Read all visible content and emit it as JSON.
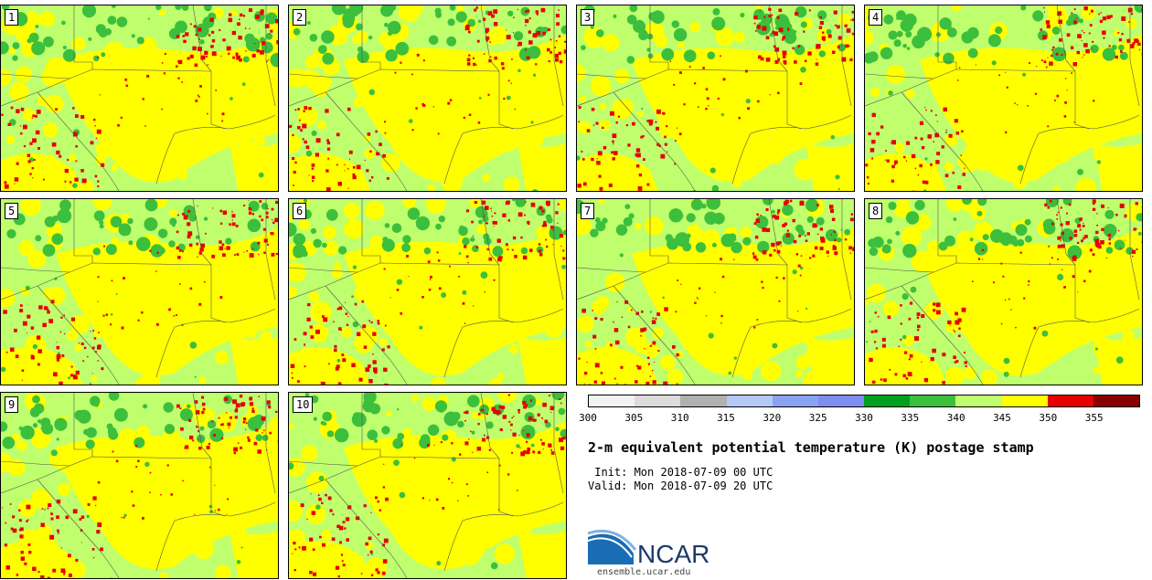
{
  "panels": [
    {
      "label": "1"
    },
    {
      "label": "2"
    },
    {
      "label": "3"
    },
    {
      "label": "4"
    },
    {
      "label": "5"
    },
    {
      "label": "6"
    },
    {
      "label": "7"
    },
    {
      "label": "8"
    },
    {
      "label": "9"
    },
    {
      "label": "10"
    }
  ],
  "colorbar": {
    "colors": [
      "#f2f2f2",
      "#dcdcdc",
      "#b0b0b0",
      "#b5c9f7",
      "#8aa2f2",
      "#7f8ef0",
      "#00a11e",
      "#3cbf3c",
      "#bfff6e",
      "#ffff00",
      "#e60000",
      "#880000"
    ],
    "ticks": [
      "300",
      "305",
      "310",
      "315",
      "320",
      "325",
      "330",
      "335",
      "340",
      "345",
      "350",
      "355"
    ]
  },
  "title": "2-m equivalent potential temperature (K) postage stamp",
  "init": " Init: Mon 2018-07-09 00 UTC",
  "valid": "Valid: Mon 2018-07-09 20 UTC",
  "logo": {
    "text": "NCAR",
    "url": "ensemble.ucar.edu"
  },
  "map_colors": {
    "light_green": "#bfff6e",
    "yellow": "#ffff00",
    "green": "#3cbf3c",
    "red": "#e60000"
  }
}
